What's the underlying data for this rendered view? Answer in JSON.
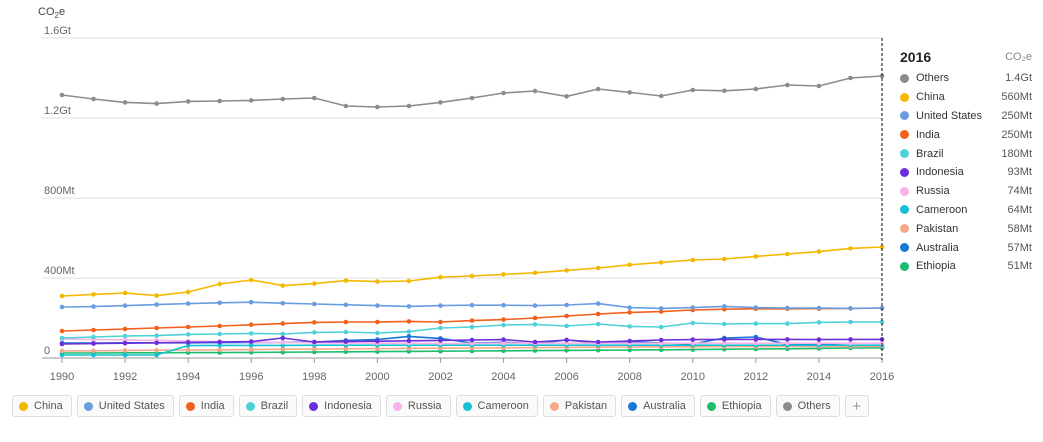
{
  "chart_data": {
    "type": "line",
    "unit_label": "CO₂e",
    "x": [
      1990,
      1991,
      1992,
      1993,
      1994,
      1995,
      1996,
      1997,
      1998,
      1999,
      2000,
      2001,
      2002,
      2003,
      2004,
      2005,
      2006,
      2007,
      2008,
      2009,
      2010,
      2011,
      2012,
      2013,
      2014,
      2015,
      2016
    ],
    "x_ticks": [
      "1990",
      "1992",
      "1994",
      "1996",
      "1998",
      "2000",
      "2002",
      "2004",
      "2006",
      "2008",
      "2010",
      "2012",
      "2014",
      "2016"
    ],
    "ylim": [
      0,
      1600
    ],
    "y_ticks": [
      {
        "value": 0,
        "label": "0"
      },
      {
        "value": 400,
        "label": "400Mt"
      },
      {
        "value": 800,
        "label": "800Mt"
      },
      {
        "value": 1200,
        "label": "1.2Gt"
      },
      {
        "value": 1600,
        "label": "1.6Gt"
      }
    ],
    "grid": true,
    "selected_year": "2016",
    "series": [
      {
        "name": "Others",
        "color": "#8c8c8c",
        "values": [
          1315,
          1295,
          1278,
          1272,
          1283,
          1285,
          1288,
          1295,
          1300,
          1260,
          1255,
          1260,
          1278,
          1300,
          1325,
          1335,
          1308,
          1345,
          1328,
          1310,
          1340,
          1336,
          1345,
          1365,
          1360,
          1400,
          1410
        ]
      },
      {
        "name": "China",
        "color": "#f5b800",
        "values": [
          310,
          318,
          325,
          312,
          330,
          370,
          390,
          362,
          372,
          387,
          382,
          385,
          404,
          410,
          418,
          426,
          438,
          450,
          466,
          478,
          490,
          495,
          508,
          520,
          532,
          548,
          555
        ]
      },
      {
        "name": "United States",
        "color": "#6a9de0",
        "values": [
          255,
          257,
          262,
          267,
          272,
          276,
          279,
          274,
          270,
          266,
          262,
          258,
          262,
          264,
          264,
          262,
          265,
          272,
          252,
          248,
          252,
          258,
          252,
          250,
          250,
          248,
          250
        ]
      },
      {
        "name": "India",
        "color": "#f2601c",
        "values": [
          135,
          140,
          145,
          150,
          155,
          160,
          166,
          172,
          178,
          180,
          180,
          183,
          180,
          187,
          192,
          200,
          210,
          220,
          228,
          232,
          240,
          244,
          246,
          246,
          247,
          248,
          250
        ]
      },
      {
        "name": "Brazil",
        "color": "#4fd1d9",
        "values": [
          100,
          105,
          110,
          112,
          118,
          120,
          123,
          120,
          128,
          130,
          125,
          132,
          150,
          155,
          165,
          168,
          160,
          170,
          158,
          155,
          175,
          170,
          172,
          172,
          178,
          180,
          180
        ]
      },
      {
        "name": "Indonesia",
        "color": "#6a2edb",
        "values": [
          70,
          72,
          74,
          76,
          78,
          80,
          82,
          100,
          80,
          82,
          84,
          86,
          88,
          90,
          92,
          80,
          90,
          80,
          85,
          90,
          92,
          93,
          93,
          93,
          92,
          93,
          93
        ]
      },
      {
        "name": "Russia",
        "color": "#f7b3e6",
        "values": [
          95,
          93,
          90,
          88,
          85,
          82,
          80,
          78,
          76,
          75,
          74,
          74,
          73,
          73,
          74,
          74,
          74,
          74,
          74,
          74,
          74,
          74,
          74,
          74,
          74,
          74,
          74
        ]
      },
      {
        "name": "Cameroon",
        "color": "#17c0d4",
        "values": [
          15,
          15,
          15,
          15,
          62,
          63,
          63,
          63,
          64,
          64,
          64,
          64,
          64,
          64,
          64,
          64,
          64,
          64,
          64,
          64,
          64,
          64,
          64,
          64,
          64,
          64,
          64
        ]
      },
      {
        "name": "Pakistan",
        "color": "#f5a988",
        "values": [
          35,
          36,
          38,
          39,
          40,
          41,
          42,
          44,
          45,
          46,
          47,
          48,
          49,
          50,
          51,
          52,
          53,
          54,
          55,
          56,
          56,
          57,
          57,
          58,
          58,
          58,
          58
        ]
      },
      {
        "name": "Australia",
        "color": "#1876d4",
        "values": [
          75,
          75,
          76,
          76,
          76,
          77,
          78,
          78,
          80,
          88,
          92,
          108,
          98,
          75,
          78,
          72,
          90,
          75,
          82,
          75,
          70,
          100,
          105,
          68,
          70,
          62,
          57
        ]
      },
      {
        "name": "Ethiopia",
        "color": "#1cbd6f",
        "values": [
          25,
          25,
          26,
          26,
          27,
          27,
          28,
          29,
          30,
          31,
          32,
          33,
          34,
          35,
          36,
          37,
          38,
          39,
          40,
          41,
          42,
          44,
          45,
          46,
          48,
          50,
          51
        ]
      }
    ],
    "legend_values": [
      "1.4Gt",
      "560Mt",
      "250Mt",
      "250Mt",
      "180Mt",
      "93Mt",
      "74Mt",
      "64Mt",
      "58Mt",
      "57Mt",
      "51Mt"
    ]
  },
  "panel": {
    "year": "2016",
    "unit": "CO₂e"
  },
  "chips": [
    "China",
    "United States",
    "India",
    "Brazil",
    "Indonesia",
    "Russia",
    "Cameroon",
    "Pakistan",
    "Australia",
    "Ethiopia",
    "Others"
  ],
  "add_symbol": "+"
}
